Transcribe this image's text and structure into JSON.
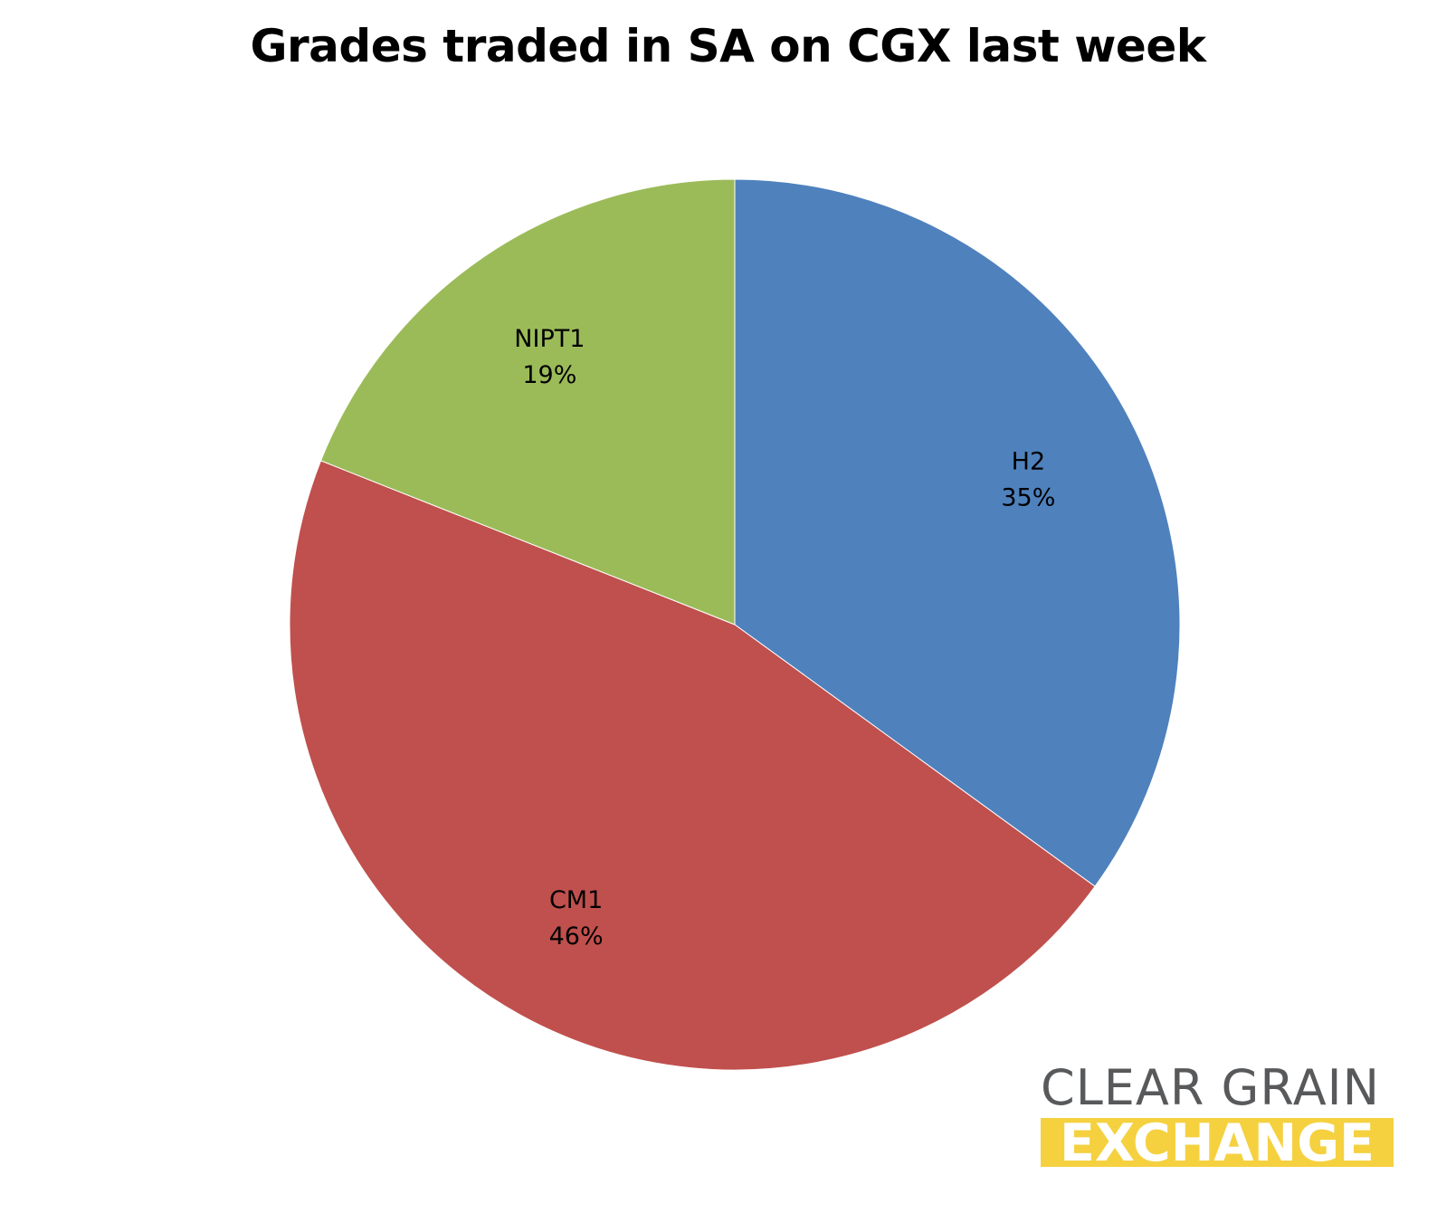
{
  "chart_data": {
    "type": "pie",
    "title": "Grades traded in SA on CGX last week",
    "slices": [
      {
        "label": "H2",
        "value": 35,
        "value_label": "35%",
        "color": "#4f81bd"
      },
      {
        "label": "CM1",
        "value": 46,
        "value_label": "46%",
        "color": "#c0504d"
      },
      {
        "label": "NIPT1",
        "value": 19,
        "value_label": "19%",
        "color": "#9bbb59"
      }
    ],
    "start_angle": "12 o'clock",
    "direction": "clockwise",
    "legend": "none",
    "data_labels": "inside"
  },
  "logo": {
    "line1": "CLEAR GRAIN",
    "line2": "EXCHANGE",
    "color_text": "#58595b",
    "color_band": "#f5d140"
  }
}
